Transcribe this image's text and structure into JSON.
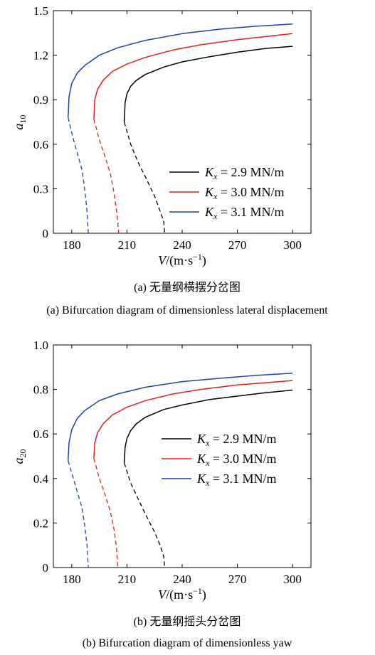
{
  "chart_data": [
    {
      "type": "line",
      "panel": "a",
      "ylabel": "a10",
      "xlabel": "V/(m·s−1)",
      "xlim": [
        170,
        310
      ],
      "ylim": [
        0,
        1.5
      ],
      "xticks": [
        "180",
        "210",
        "240",
        "270",
        "300"
      ],
      "yticks": [
        "0",
        "0.3",
        "0.6",
        "0.9",
        "1.2",
        "1.5"
      ],
      "caption_cn": "(a) 无量纲横摆分岔图",
      "caption_en": "(a) Bifurcation diagram of dimensionless lateral displacement",
      "legend_position": "lower-right",
      "series": [
        {
          "name": "Kx = 2.9 MN/m",
          "color": "#000000",
          "v0": 230.5,
          "vt": 208.5,
          "stable": [
            [
              208.5,
              0.75
            ],
            [
              209,
              0.88
            ],
            [
              210,
              0.94
            ],
            [
              212,
              0.99
            ],
            [
              215,
              1.03
            ],
            [
              220,
              1.07
            ],
            [
              230,
              1.12
            ],
            [
              240,
              1.155
            ],
            [
              255,
              1.19
            ],
            [
              270,
              1.22
            ],
            [
              285,
              1.245
            ],
            [
              300,
              1.26
            ]
          ],
          "unstable": [
            [
              208.5,
              0.75
            ],
            [
              212,
              0.6
            ],
            [
              216,
              0.48
            ],
            [
              220,
              0.38
            ],
            [
              225,
              0.25
            ],
            [
              228,
              0.15
            ],
            [
              230,
              0.08
            ],
            [
              230.5,
              0
            ]
          ]
        },
        {
          "name": "Kx = 3.0 MN/m",
          "color": "#e0201c",
          "v0": 205.5,
          "vt": 192,
          "stable": [
            [
              192,
              0.77
            ],
            [
              192.5,
              0.9
            ],
            [
              194,
              0.97
            ],
            [
              197,
              1.03
            ],
            [
              202,
              1.09
            ],
            [
              210,
              1.14
            ],
            [
              220,
              1.185
            ],
            [
              235,
              1.235
            ],
            [
              250,
              1.27
            ],
            [
              270,
              1.305
            ],
            [
              285,
              1.325
            ],
            [
              300,
              1.345
            ]
          ],
          "unstable": [
            [
              192,
              0.77
            ],
            [
              195,
              0.63
            ],
            [
              198,
              0.52
            ],
            [
              201,
              0.4
            ],
            [
              203,
              0.27
            ],
            [
              204.5,
              0.14
            ],
            [
              205.5,
              0
            ]
          ]
        },
        {
          "name": "Kx = 3.1 MN/m",
          "color": "#1f3fae",
          "v0": 189,
          "vt": 178,
          "stable": [
            [
              178,
              0.78
            ],
            [
              178.5,
              0.92
            ],
            [
              180,
              1.01
            ],
            [
              183,
              1.08
            ],
            [
              187,
              1.13
            ],
            [
              195,
              1.2
            ],
            [
              205,
              1.25
            ],
            [
              220,
              1.3
            ],
            [
              240,
              1.345
            ],
            [
              260,
              1.375
            ],
            [
              280,
              1.395
            ],
            [
              300,
              1.41
            ]
          ],
          "unstable": [
            [
              178,
              0.78
            ],
            [
              180.5,
              0.65
            ],
            [
              183,
              0.54
            ],
            [
              185.5,
              0.43
            ],
            [
              187,
              0.3
            ],
            [
              188.3,
              0.15
            ],
            [
              189,
              0
            ]
          ]
        }
      ]
    },
    {
      "type": "line",
      "panel": "b",
      "ylabel": "a20",
      "xlabel": "V/(m·s−1)",
      "xlim": [
        170,
        310
      ],
      "ylim": [
        0,
        1.0
      ],
      "xticks": [
        "180",
        "210",
        "240",
        "270",
        "300"
      ],
      "yticks": [
        "0",
        "0.2",
        "0.4",
        "0.6",
        "0.8",
        "1.0"
      ],
      "caption_cn": "(b) 无量纲摇头分岔图",
      "caption_en": "(b) Bifurcation diagram of dimensionless yaw",
      "legend_position": "center-right",
      "series": [
        {
          "name": "Kx = 2.9 MN/m",
          "color": "#000000",
          "v0": 230.5,
          "vt": 208.5,
          "stable": [
            [
              208.5,
              0.47
            ],
            [
              209,
              0.54
            ],
            [
              210,
              0.58
            ],
            [
              212,
              0.615
            ],
            [
              215,
              0.645
            ],
            [
              220,
              0.675
            ],
            [
              230,
              0.71
            ],
            [
              240,
              0.73
            ],
            [
              255,
              0.755
            ],
            [
              270,
              0.77
            ],
            [
              285,
              0.785
            ],
            [
              300,
              0.797
            ]
          ],
          "unstable": [
            [
              208.5,
              0.47
            ],
            [
              212,
              0.38
            ],
            [
              216,
              0.31
            ],
            [
              220,
              0.24
            ],
            [
              225,
              0.16
            ],
            [
              228,
              0.1
            ],
            [
              230,
              0.05
            ],
            [
              230.5,
              0
            ]
          ]
        },
        {
          "name": "Kx = 3.0 MN/m",
          "color": "#e0201c",
          "v0": 205,
          "vt": 192,
          "stable": [
            [
              192,
              0.49
            ],
            [
              192.5,
              0.56
            ],
            [
              194,
              0.605
            ],
            [
              197,
              0.645
            ],
            [
              202,
              0.685
            ],
            [
              210,
              0.72
            ],
            [
              220,
              0.75
            ],
            [
              235,
              0.78
            ],
            [
              250,
              0.8
            ],
            [
              270,
              0.82
            ],
            [
              285,
              0.83
            ],
            [
              300,
              0.84
            ]
          ],
          "unstable": [
            [
              192,
              0.49
            ],
            [
              195,
              0.4
            ],
            [
              198,
              0.33
            ],
            [
              201,
              0.25
            ],
            [
              203,
              0.17
            ],
            [
              204.3,
              0.09
            ],
            [
              205,
              0
            ]
          ]
        },
        {
          "name": "Kx = 3.1 MN/m",
          "color": "#1f3fae",
          "v0": 189,
          "vt": 178,
          "stable": [
            [
              178,
              0.48
            ],
            [
              178.5,
              0.56
            ],
            [
              180,
              0.62
            ],
            [
              183,
              0.67
            ],
            [
              187,
              0.705
            ],
            [
              195,
              0.75
            ],
            [
              205,
              0.78
            ],
            [
              220,
              0.81
            ],
            [
              240,
              0.835
            ],
            [
              260,
              0.85
            ],
            [
              280,
              0.863
            ],
            [
              300,
              0.873
            ]
          ],
          "unstable": [
            [
              178,
              0.48
            ],
            [
              180.5,
              0.41
            ],
            [
              183,
              0.34
            ],
            [
              185.5,
              0.27
            ],
            [
              187,
              0.19
            ],
            [
              188.3,
              0.1
            ],
            [
              189,
              0
            ]
          ]
        }
      ]
    }
  ]
}
